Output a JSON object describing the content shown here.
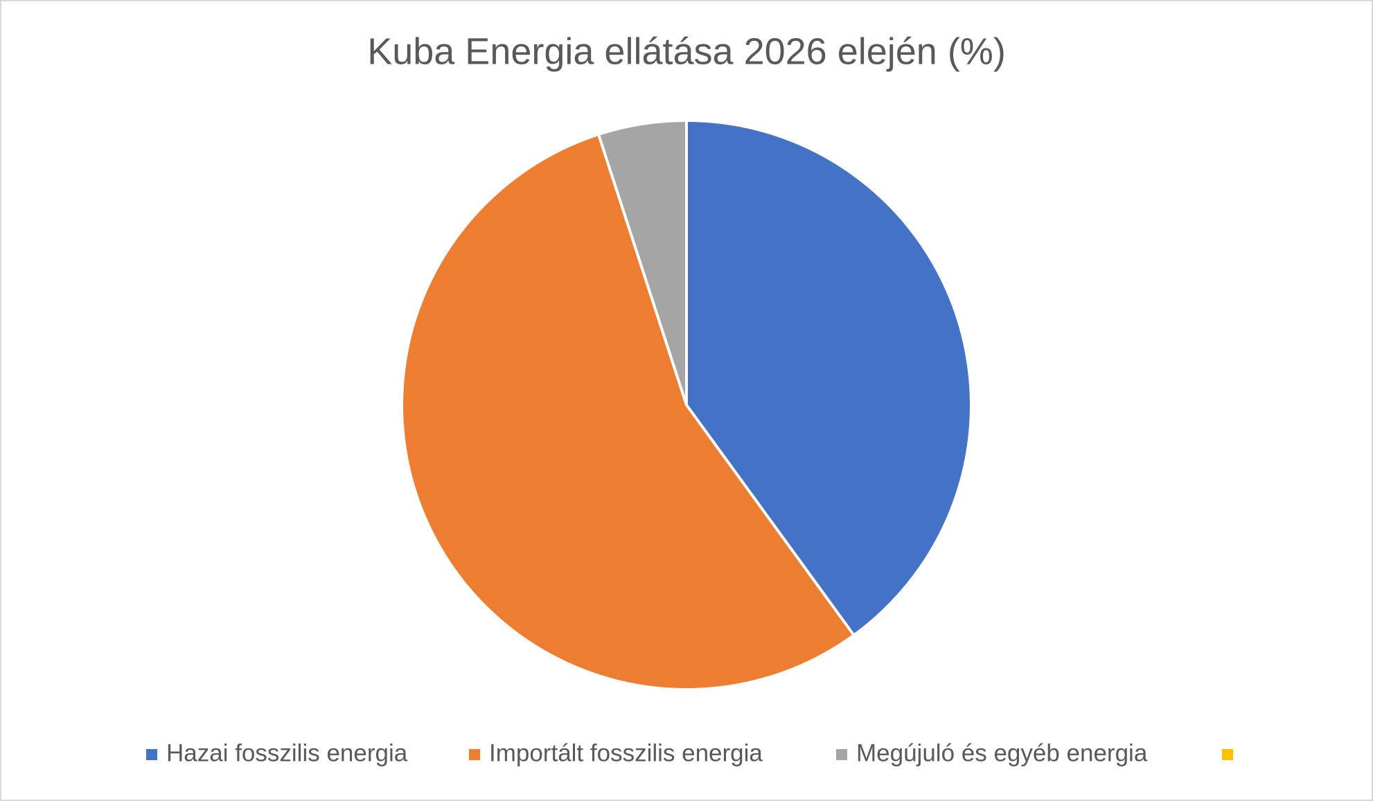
{
  "chart_data": {
    "type": "pie",
    "title": "Kuba Energia ellátása 2026 elején (%)",
    "categories": [
      "Hazai fosszilis energia",
      "Importált fosszilis energia",
      "Megújuló és egyéb energia",
      null
    ],
    "values": [
      40,
      55,
      5,
      0
    ],
    "colors": [
      "#4472c4",
      "#ed7d31",
      "#a5a5a5",
      "#ffc000"
    ],
    "legend": "bottom"
  }
}
